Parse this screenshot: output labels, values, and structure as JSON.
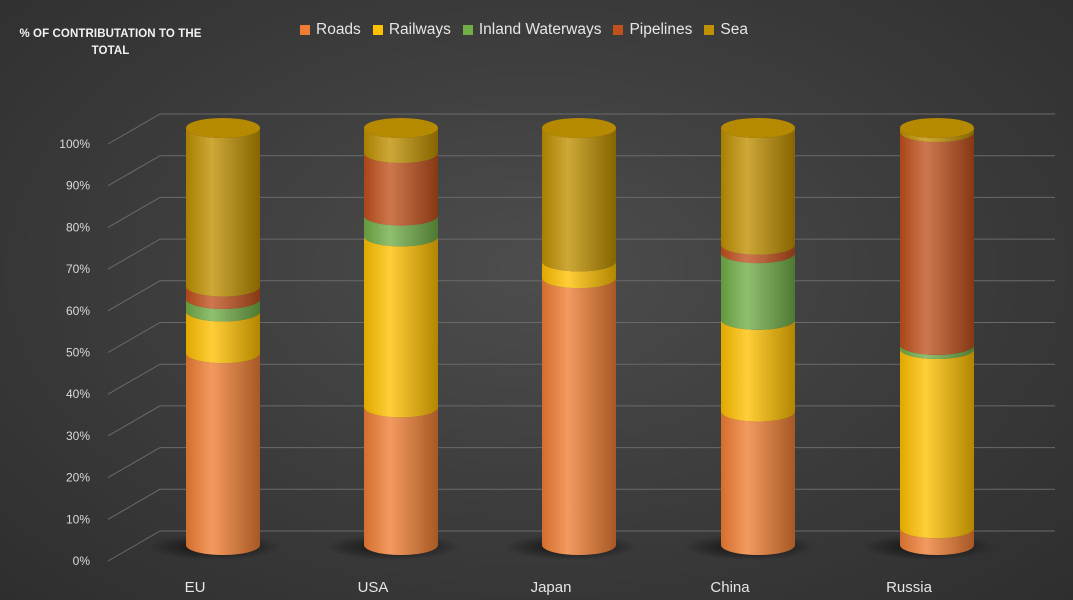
{
  "chart_data": {
    "type": "bar",
    "subtype": "stacked-100-cylinder-3d",
    "title": "% OF CONTRIBUTATION TO THE TOTAL",
    "xlabel": "",
    "ylabel": "% OF CONTRIBUTATION TO THE TOTAL",
    "ylim": [
      0,
      100
    ],
    "yticks": [
      "0%",
      "10%",
      "20%",
      "30%",
      "40%",
      "50%",
      "60%",
      "70%",
      "80%",
      "90%",
      "100%"
    ],
    "grid": true,
    "legend_position": "top",
    "categories": [
      "EU",
      "USA",
      "Japan",
      "China",
      "Russia"
    ],
    "series": [
      {
        "name": "Roads",
        "color": "#ef7d33",
        "values": [
          46,
          33,
          64,
          32,
          4
        ]
      },
      {
        "name": "Railways",
        "color": "#ffc000",
        "values": [
          10,
          41,
          4,
          22,
          43
        ]
      },
      {
        "name": "Inland Waterways",
        "color": "#70ad47",
        "values": [
          3,
          5,
          0,
          16,
          1
        ]
      },
      {
        "name": "Pipelines",
        "color": "#c0501c",
        "values": [
          3,
          15,
          0,
          2,
          51
        ]
      },
      {
        "name": "Sea",
        "color": "#bf9000",
        "values": [
          38,
          6,
          32,
          28,
          1
        ]
      }
    ]
  }
}
